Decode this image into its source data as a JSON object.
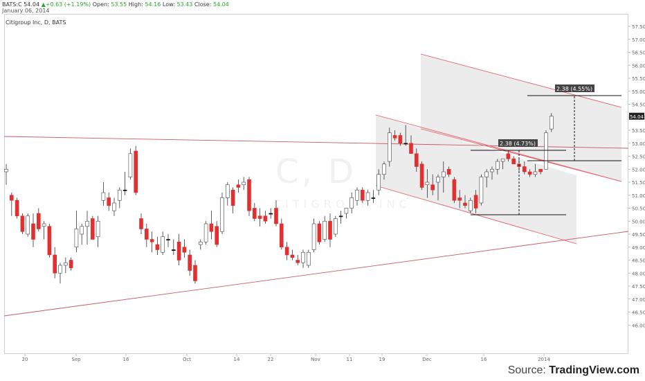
{
  "header": {
    "symbol": "BATS:C",
    "price": "54.04",
    "change": "▲+0.63 (+1.19%)",
    "open_label": "Open:",
    "open": "53.55",
    "high_label": "High:",
    "high": "54.16",
    "low_label": "Low:",
    "low": "53.43",
    "close_label": "Close:",
    "close": "54.04",
    "date": "January 06, 2014"
  },
  "title": "Citigroup Inc, D, BATS",
  "watermark": "C, D",
  "watermark_sub": "CITIGROUP INC",
  "source_prefix": "Source: ",
  "source_brand": "TradingView.com",
  "measure_labels": [
    "2.38 (4.73%)",
    "2.38 (4.55%)"
  ],
  "last_price_tag": "54.04",
  "colors": {
    "up": "#f0c8c8",
    "down": "#e23030",
    "doji": "#111111",
    "trendline": "#c75a64",
    "channel": "#e2626c",
    "shade": "#e6e6e6",
    "label_bg": "#444444"
  },
  "chart_data": {
    "type": "candlestick",
    "title": "Citigroup Inc, D, BATS",
    "ylim": [
      45.5,
      57.5
    ],
    "y_ticks": [
      "46.00",
      "46.50",
      "47.00",
      "47.50",
      "48.00",
      "48.50",
      "49.00",
      "49.50",
      "50.00",
      "50.50",
      "51.00",
      "51.50",
      "52.00",
      "52.50",
      "53.00",
      "53.50",
      "54.00",
      "54.50",
      "55.00",
      "55.50",
      "56.00",
      "56.50",
      "57.00",
      "57.50"
    ],
    "x_labels": [
      "20",
      "Sep",
      "16",
      "Oct",
      "14",
      "22",
      "Nov",
      "11",
      "19",
      "Dec",
      "16",
      "2014"
    ],
    "candles": [
      {
        "o": 51.9,
        "h": 52.2,
        "l": 51.4,
        "c": 52.0
      },
      {
        "o": 51.0,
        "h": 51.1,
        "l": 50.2,
        "c": 50.8
      },
      {
        "o": 50.8,
        "h": 50.9,
        "l": 50.1,
        "c": 50.2
      },
      {
        "o": 50.2,
        "h": 50.3,
        "l": 49.5,
        "c": 49.6
      },
      {
        "o": 49.5,
        "h": 50.3,
        "l": 49.4,
        "c": 50.2
      },
      {
        "o": 49.9,
        "h": 50.3,
        "l": 49.0,
        "c": 49.3
      },
      {
        "o": 50.3,
        "h": 50.5,
        "l": 49.6,
        "c": 49.7
      },
      {
        "o": 49.8,
        "h": 50.0,
        "l": 49.3,
        "c": 49.9
      },
      {
        "o": 49.8,
        "h": 49.9,
        "l": 48.6,
        "c": 48.7
      },
      {
        "o": 48.7,
        "h": 49.0,
        "l": 47.8,
        "c": 48.0
      },
      {
        "o": 48.0,
        "h": 48.4,
        "l": 47.6,
        "c": 48.3
      },
      {
        "o": 48.3,
        "h": 48.6,
        "l": 48.0,
        "c": 48.4
      },
      {
        "o": 48.5,
        "h": 48.6,
        "l": 48.1,
        "c": 48.2
      },
      {
        "o": 49.0,
        "h": 50.4,
        "l": 48.8,
        "c": 49.7
      },
      {
        "o": 49.5,
        "h": 49.9,
        "l": 49.1,
        "c": 49.8
      },
      {
        "o": 49.8,
        "h": 50.4,
        "l": 49.1,
        "c": 50.0
      },
      {
        "o": 50.1,
        "h": 50.2,
        "l": 49.3,
        "c": 49.3
      },
      {
        "o": 49.4,
        "h": 50.2,
        "l": 49.0,
        "c": 50.0
      },
      {
        "o": 50.8,
        "h": 51.5,
        "l": 50.6,
        "c": 51.1
      },
      {
        "o": 50.9,
        "h": 51.1,
        "l": 50.4,
        "c": 50.6
      },
      {
        "o": 50.4,
        "h": 50.9,
        "l": 50.2,
        "c": 50.7
      },
      {
        "o": 50.8,
        "h": 51.3,
        "l": 50.5,
        "c": 51.2
      },
      {
        "o": 51.2,
        "h": 51.9,
        "l": 51.0,
        "c": 51.2
      },
      {
        "o": 51.7,
        "h": 52.8,
        "l": 51.6,
        "c": 52.6
      },
      {
        "o": 52.7,
        "h": 52.9,
        "l": 51.0,
        "c": 51.1
      },
      {
        "o": 50.1,
        "h": 50.3,
        "l": 49.5,
        "c": 49.7
      },
      {
        "o": 49.7,
        "h": 49.9,
        "l": 49.0,
        "c": 49.3
      },
      {
        "o": 49.3,
        "h": 49.6,
        "l": 48.8,
        "c": 49.2
      },
      {
        "o": 49.1,
        "h": 49.4,
        "l": 48.7,
        "c": 48.9
      },
      {
        "o": 48.8,
        "h": 49.6,
        "l": 48.7,
        "c": 49.4
      },
      {
        "o": 49.3,
        "h": 49.5,
        "l": 49.0,
        "c": 49.3
      },
      {
        "o": 48.9,
        "h": 49.3,
        "l": 48.7,
        "c": 48.9
      },
      {
        "o": 49.2,
        "h": 49.5,
        "l": 48.3,
        "c": 48.5
      },
      {
        "o": 49.0,
        "h": 49.3,
        "l": 48.6,
        "c": 48.8
      },
      {
        "o": 48.7,
        "h": 48.9,
        "l": 47.9,
        "c": 48.1
      },
      {
        "o": 48.3,
        "h": 48.5,
        "l": 47.6,
        "c": 47.7
      },
      {
        "o": 49.1,
        "h": 49.3,
        "l": 48.9,
        "c": 49.2
      },
      {
        "o": 49.2,
        "h": 50.0,
        "l": 49.1,
        "c": 49.9
      },
      {
        "o": 49.9,
        "h": 50.4,
        "l": 49.3,
        "c": 49.6
      },
      {
        "o": 49.8,
        "h": 50.0,
        "l": 49.0,
        "c": 49.1
      },
      {
        "o": 49.6,
        "h": 51.1,
        "l": 49.5,
        "c": 50.9
      },
      {
        "o": 50.9,
        "h": 51.5,
        "l": 50.6,
        "c": 51.4
      },
      {
        "o": 51.2,
        "h": 51.3,
        "l": 50.3,
        "c": 50.6
      },
      {
        "o": 51.4,
        "h": 51.6,
        "l": 51.1,
        "c": 51.3
      },
      {
        "o": 51.4,
        "h": 51.7,
        "l": 51.2,
        "c": 51.5
      },
      {
        "o": 51.6,
        "h": 51.7,
        "l": 50.2,
        "c": 50.4
      },
      {
        "o": 50.5,
        "h": 50.7,
        "l": 50.0,
        "c": 50.1
      },
      {
        "o": 50.2,
        "h": 50.5,
        "l": 49.8,
        "c": 50.1
      },
      {
        "o": 50.2,
        "h": 50.4,
        "l": 49.9,
        "c": 50.0
      },
      {
        "o": 50.3,
        "h": 50.5,
        "l": 50.1,
        "c": 50.3
      },
      {
        "o": 50.5,
        "h": 50.8,
        "l": 49.8,
        "c": 49.9
      },
      {
        "o": 49.9,
        "h": 50.1,
        "l": 48.9,
        "c": 49.0
      },
      {
        "o": 49.0,
        "h": 49.2,
        "l": 48.5,
        "c": 48.7
      },
      {
        "o": 48.7,
        "h": 48.9,
        "l": 48.5,
        "c": 48.6
      },
      {
        "o": 48.5,
        "h": 48.7,
        "l": 48.3,
        "c": 48.4
      },
      {
        "o": 48.4,
        "h": 48.9,
        "l": 48.2,
        "c": 48.8
      },
      {
        "o": 48.3,
        "h": 48.9,
        "l": 48.2,
        "c": 48.8
      },
      {
        "o": 48.9,
        "h": 50.1,
        "l": 48.8,
        "c": 49.9
      },
      {
        "o": 49.9,
        "h": 50.0,
        "l": 49.1,
        "c": 49.2
      },
      {
        "o": 49.3,
        "h": 50.2,
        "l": 49.2,
        "c": 50.0
      },
      {
        "o": 50.0,
        "h": 50.3,
        "l": 49.0,
        "c": 49.3
      },
      {
        "o": 49.5,
        "h": 50.2,
        "l": 49.4,
        "c": 50.1
      },
      {
        "o": 50.2,
        "h": 50.4,
        "l": 49.9,
        "c": 50.2
      },
      {
        "o": 50.3,
        "h": 50.5,
        "l": 50.1,
        "c": 50.5
      },
      {
        "o": 50.5,
        "h": 51.1,
        "l": 50.3,
        "c": 50.9
      },
      {
        "o": 50.8,
        "h": 51.3,
        "l": 50.6,
        "c": 51.2
      },
      {
        "o": 51.2,
        "h": 51.3,
        "l": 50.7,
        "c": 50.8
      },
      {
        "o": 50.8,
        "h": 51.2,
        "l": 50.6,
        "c": 51.1
      },
      {
        "o": 50.9,
        "h": 51.2,
        "l": 50.7,
        "c": 50.9
      },
      {
        "o": 51.2,
        "h": 52.0,
        "l": 51.0,
        "c": 51.8
      },
      {
        "o": 51.8,
        "h": 52.3,
        "l": 51.6,
        "c": 52.2
      },
      {
        "o": 52.3,
        "h": 53.6,
        "l": 52.1,
        "c": 53.4
      },
      {
        "o": 53.3,
        "h": 53.5,
        "l": 53.1,
        "c": 53.2
      },
      {
        "o": 53.3,
        "h": 53.4,
        "l": 52.9,
        "c": 53.0
      },
      {
        "o": 53.0,
        "h": 53.7,
        "l": 52.9,
        "c": 53.0
      },
      {
        "o": 53.0,
        "h": 53.3,
        "l": 52.6,
        "c": 52.6
      },
      {
        "o": 52.6,
        "h": 52.8,
        "l": 51.9,
        "c": 52.1
      },
      {
        "o": 52.2,
        "h": 52.3,
        "l": 51.2,
        "c": 51.3
      },
      {
        "o": 51.4,
        "h": 52.0,
        "l": 50.9,
        "c": 51.5
      },
      {
        "o": 51.4,
        "h": 51.8,
        "l": 51.0,
        "c": 51.2
      },
      {
        "o": 51.5,
        "h": 51.8,
        "l": 50.8,
        "c": 51.7
      },
      {
        "o": 51.7,
        "h": 52.3,
        "l": 51.1,
        "c": 51.9
      },
      {
        "o": 52.0,
        "h": 52.1,
        "l": 51.7,
        "c": 51.8
      },
      {
        "o": 51.6,
        "h": 51.7,
        "l": 50.7,
        "c": 50.8
      },
      {
        "o": 50.9,
        "h": 51.2,
        "l": 50.5,
        "c": 50.8
      },
      {
        "o": 50.7,
        "h": 51.0,
        "l": 50.5,
        "c": 50.6
      },
      {
        "o": 50.4,
        "h": 50.9,
        "l": 50.3,
        "c": 50.8
      },
      {
        "o": 51.0,
        "h": 51.2,
        "l": 50.3,
        "c": 50.5
      },
      {
        "o": 50.7,
        "h": 51.8,
        "l": 50.6,
        "c": 51.7
      },
      {
        "o": 51.7,
        "h": 52.0,
        "l": 51.3,
        "c": 51.9
      },
      {
        "o": 51.9,
        "h": 52.1,
        "l": 51.6,
        "c": 52.0
      },
      {
        "o": 52.0,
        "h": 52.4,
        "l": 51.8,
        "c": 52.3
      },
      {
        "o": 52.3,
        "h": 52.4,
        "l": 52.0,
        "c": 52.4
      },
      {
        "o": 52.6,
        "h": 52.7,
        "l": 52.3,
        "c": 52.4
      },
      {
        "o": 52.4,
        "h": 52.5,
        "l": 52.2,
        "c": 52.2
      },
      {
        "o": 52.2,
        "h": 52.4,
        "l": 51.9,
        "c": 52.1
      },
      {
        "o": 52.1,
        "h": 52.3,
        "l": 51.8,
        "c": 51.9
      },
      {
        "o": 51.9,
        "h": 52.0,
        "l": 51.7,
        "c": 51.8
      },
      {
        "o": 51.8,
        "h": 52.2,
        "l": 51.7,
        "c": 51.9
      },
      {
        "o": 52.0,
        "h": 52.0,
        "l": 51.8,
        "c": 51.9
      },
      {
        "o": 52.0,
        "h": 53.5,
        "l": 52.0,
        "c": 53.4
      },
      {
        "o": 53.55,
        "h": 54.16,
        "l": 53.43,
        "c": 54.04
      }
    ]
  }
}
